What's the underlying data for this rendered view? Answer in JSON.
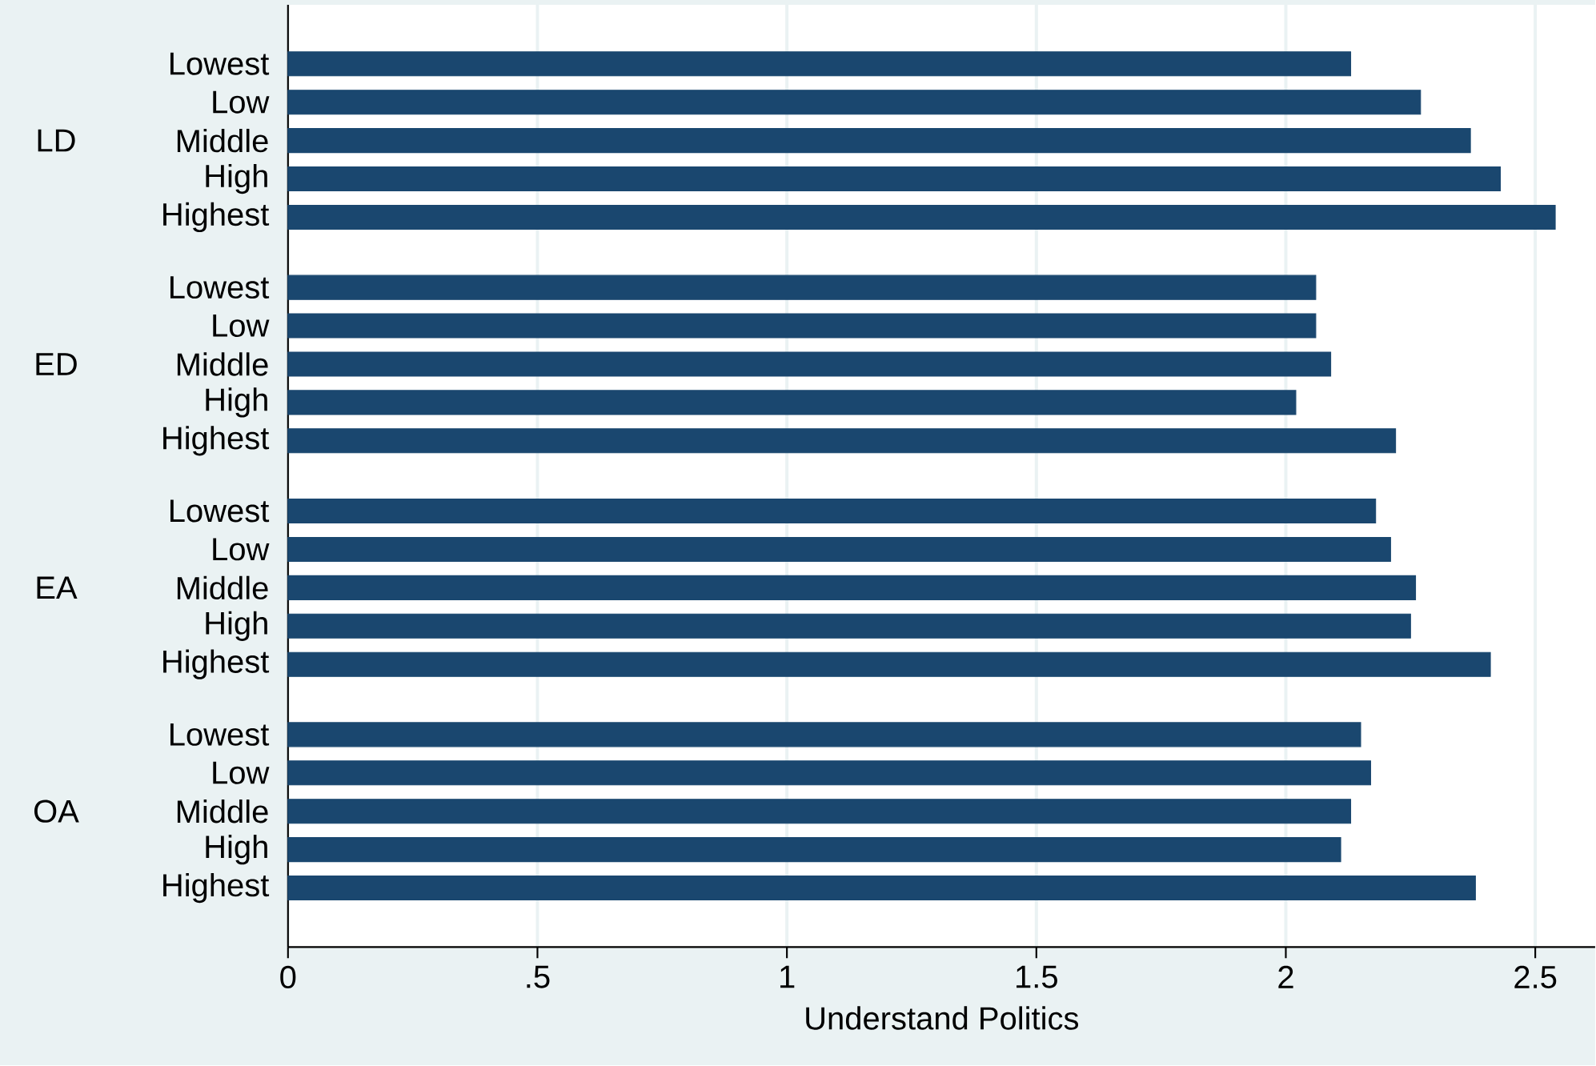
{
  "chart_data": {
    "type": "bar",
    "orientation": "horizontal",
    "xlabel": "Understand Politics",
    "categories": [
      "Lowest",
      "Low",
      "Middle",
      "High",
      "Highest",
      "Lowest",
      "Low",
      "Middle",
      "High",
      "Highest",
      "Lowest",
      "Low",
      "Middle",
      "High",
      "Highest",
      "Lowest",
      "Low",
      "Middle",
      "High",
      "Highest"
    ],
    "annotations": [
      "LD",
      "ED",
      "EA",
      "OA"
    ],
    "values": [
      2.13,
      2.27,
      2.37,
      2.43,
      2.54,
      2.06,
      2.06,
      2.09,
      2.02,
      2.22,
      2.18,
      2.21,
      2.26,
      2.25,
      2.41,
      2.15,
      2.17,
      2.13,
      2.11,
      2.38
    ],
    "color": "#1a476f",
    "xlim": [
      0,
      2.62
    ],
    "xticks": [
      0,
      {
        "value": 0.5,
        "label": ".5"
      },
      1,
      1.5,
      2,
      2.5
    ],
    "grid": "x"
  }
}
